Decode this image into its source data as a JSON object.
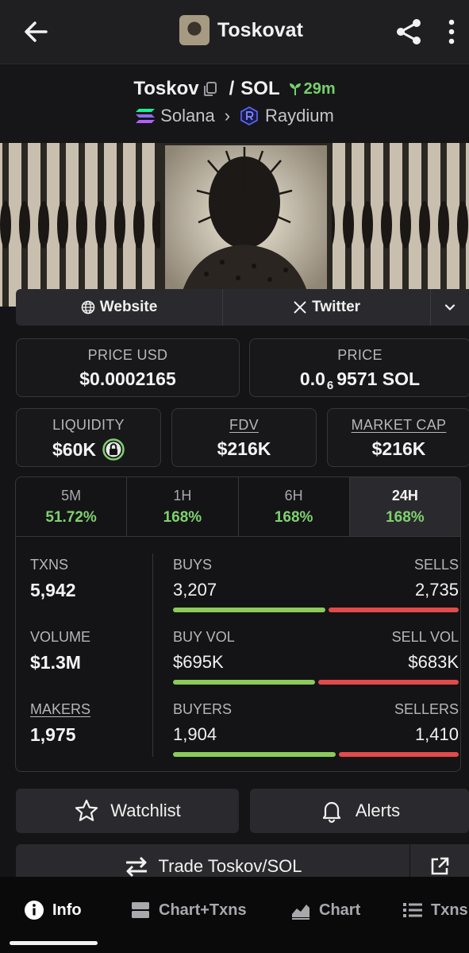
{
  "appbar": {
    "title": "Toskovat"
  },
  "pair": {
    "base": "Toskov",
    "separator": "/",
    "quote": "SOL",
    "age": "29m",
    "chain": "Solana",
    "dex": "Raydium"
  },
  "links": {
    "website": "Website",
    "twitter": "Twitter"
  },
  "price_cards": [
    {
      "label": "PRICE USD",
      "value": "$0.0002165"
    },
    {
      "label": "PRICE",
      "value_prefix": "0.0",
      "value_subscript": "6",
      "value_suffix": "9571 SOL"
    }
  ],
  "metric_cards": [
    {
      "label": "LIQUIDITY",
      "value": "$60K"
    },
    {
      "label": "FDV",
      "value": "$216K"
    },
    {
      "label": "MARKET CAP",
      "value": "$216K"
    }
  ],
  "periods": [
    {
      "label": "5M",
      "change": "51.72%"
    },
    {
      "label": "1H",
      "change": "168%"
    },
    {
      "label": "6H",
      "change": "168%"
    },
    {
      "label": "24H",
      "change": "168%",
      "selected": true
    }
  ],
  "stats": {
    "txns": {
      "label": "TXNS",
      "value": "5,942"
    },
    "volume": {
      "label": "VOLUME",
      "value": "$1.3M"
    },
    "makers": {
      "label": "MAKERS",
      "value": "1,975"
    },
    "buys_sells": {
      "left_label": "BUYS",
      "right_label": "SELLS",
      "left_value": "3,207",
      "right_value": "2,735",
      "left_fraction": 0.54
    },
    "volumes": {
      "left_label": "BUY VOL",
      "right_label": "SELL VOL",
      "left_value": "$695K",
      "right_value": "$683K",
      "left_fraction": 0.504
    },
    "buyers_sellers": {
      "left_label": "BUYERS",
      "right_label": "SELLERS",
      "left_value": "1,904",
      "right_value": "1,410",
      "left_fraction": 0.575
    }
  },
  "actions": {
    "watchlist": "Watchlist",
    "alerts": "Alerts",
    "trade": "Trade Toskov/SOL"
  },
  "nav": {
    "info": "Info",
    "chart_txns": "Chart+Txns",
    "chart": "Chart",
    "txns": "Txns"
  },
  "colors": {
    "buy": "#8acb5a",
    "sell": "#e34a4a",
    "positive": "#7fd16e"
  }
}
